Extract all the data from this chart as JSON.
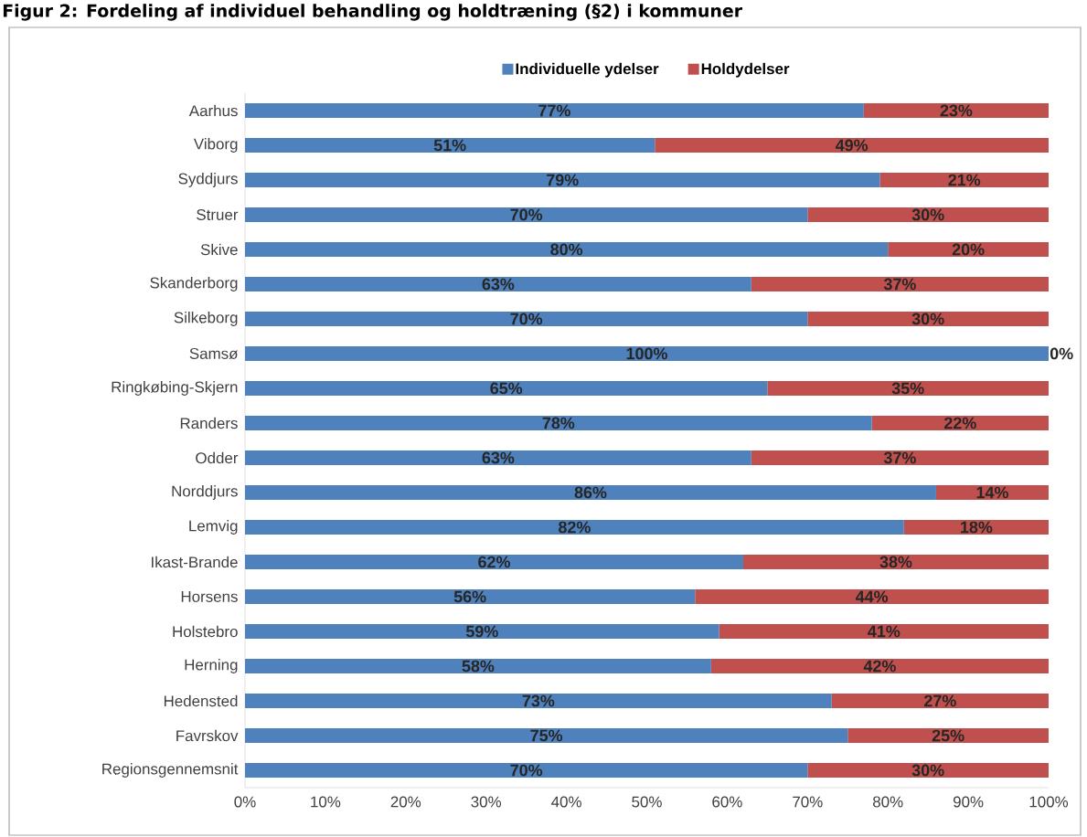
{
  "chart_data": {
    "type": "bar",
    "orientation": "horizontal",
    "stacked": true,
    "title": "Figur 2: Fordeling af individuel behandling og holdtræning (§2) i kommuner",
    "categories": [
      "Aarhus",
      "Viborg",
      "Syddjurs",
      "Struer",
      "Skive",
      "Skanderborg",
      "Silkeborg",
      "Samsø",
      "Ringkøbing-Skjern",
      "Randers",
      "Odder",
      "Norddjurs",
      "Lemvig",
      "Ikast-Brande",
      "Horsens",
      "Holstebro",
      "Herning",
      "Hedensted",
      "Favrskov",
      "Regionsgennemsnit"
    ],
    "series": [
      {
        "name": "Individuelle ydelser",
        "color": "#4f81bd",
        "values": [
          77,
          51,
          79,
          70,
          80,
          63,
          70,
          100,
          65,
          78,
          63,
          86,
          82,
          62,
          56,
          59,
          58,
          73,
          75,
          70
        ],
        "value_labels": [
          "77%",
          "51%",
          "79%",
          "70%",
          "80%",
          "63%",
          "70%",
          "100%",
          "65%",
          "78%",
          "63%",
          "86%",
          "82%",
          "62%",
          "56%",
          "59%",
          "58%",
          "73%",
          "75%",
          "70%"
        ]
      },
      {
        "name": "Holdydelser",
        "color": "#c0504d",
        "values": [
          23,
          49,
          21,
          30,
          20,
          37,
          30,
          0,
          35,
          22,
          37,
          14,
          18,
          38,
          44,
          41,
          42,
          27,
          25,
          30
        ],
        "value_labels": [
          "23%",
          "49%",
          "21%",
          "30%",
          "20%",
          "37%",
          "30%",
          "0%",
          "35%",
          "22%",
          "37%",
          "14%",
          "18%",
          "38%",
          "44%",
          "41%",
          "42%",
          "27%",
          "25%",
          "30%"
        ]
      }
    ],
    "xlim": [
      0,
      100
    ],
    "xticks": [
      {
        "value": 0,
        "label": "0%"
      },
      {
        "value": 10,
        "label": "10%"
      },
      {
        "value": 20,
        "label": "20%"
      },
      {
        "value": 30,
        "label": "30%"
      },
      {
        "value": 40,
        "label": "40%"
      },
      {
        "value": 50,
        "label": "50%"
      },
      {
        "value": 60,
        "label": "60%"
      },
      {
        "value": 70,
        "label": "70%"
      },
      {
        "value": 80,
        "label": "80%"
      },
      {
        "value": 90,
        "label": "90%"
      },
      {
        "value": 100,
        "label": "100%"
      }
    ],
    "legend": "top",
    "grid": false
  }
}
